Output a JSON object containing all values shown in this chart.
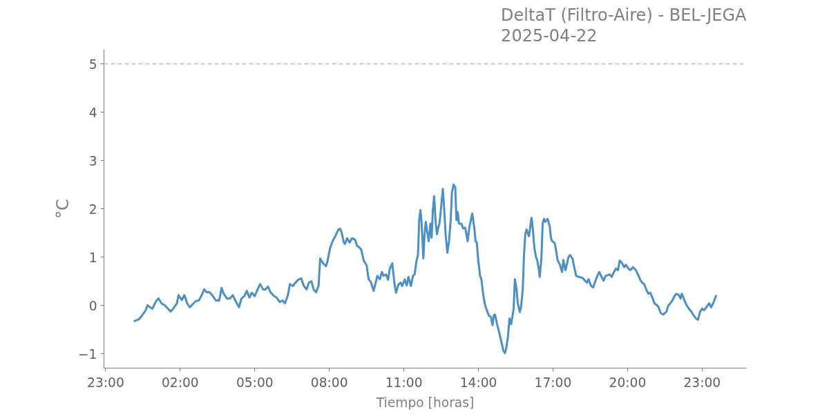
{
  "chart_data": {
    "type": "line",
    "title": "DeltaT (Filtro-Aire) - BEL-JEGA\n2025-04-22",
    "xlabel": "Tiempo [horas]",
    "ylabel": "°C",
    "xlim": [
      "2025-04-21T22:56",
      "2025-04-23T00:47"
    ],
    "ylim": [
      -1.3,
      5.3
    ],
    "xticks": [
      {
        "value": "2025-04-21T23:00",
        "label": "23:00"
      },
      {
        "value": "2025-04-22T02:00",
        "label": "02:00"
      },
      {
        "value": "2025-04-22T05:00",
        "label": "05:00"
      },
      {
        "value": "2025-04-22T08:00",
        "label": "08:00"
      },
      {
        "value": "2025-04-22T11:00",
        "label": "11:00"
      },
      {
        "value": "2025-04-22T14:00",
        "label": "14:00"
      },
      {
        "value": "2025-04-22T17:00",
        "label": "17:00"
      },
      {
        "value": "2025-04-22T20:00",
        "label": "20:00"
      },
      {
        "value": "2025-04-22T23:00",
        "label": "23:00"
      }
    ],
    "yticks": [
      {
        "value": -1,
        "label": "−1"
      },
      0,
      1,
      2,
      3,
      4,
      5
    ],
    "ref_lines": [
      {
        "axis": "y",
        "value": 5,
        "color": "#bbbbbb",
        "line_style": "dashed"
      }
    ],
    "series": [
      {
        "color": "#4a90c4",
        "x": [
          "2025-04-22T00:08",
          "2025-04-22T00:20",
          "2025-04-22T00:28",
          "2025-04-22T00:37",
          "2025-04-22T00:41",
          "2025-04-22T00:53",
          "2025-04-22T01:02",
          "2025-04-22T01:08",
          "2025-04-22T01:15",
          "2025-04-22T01:23",
          "2025-04-22T01:37",
          "2025-04-22T01:43",
          "2025-04-22T01:52",
          "2025-04-22T01:56",
          "2025-04-22T02:04",
          "2025-04-22T02:10",
          "2025-04-22T02:17",
          "2025-04-22T02:23",
          "2025-04-22T02:38",
          "2025-04-22T02:45",
          "2025-04-22T02:52",
          "2025-04-22T02:58",
          "2025-04-22T03:04",
          "2025-04-22T03:11",
          "2025-04-22T03:19",
          "2025-04-22T03:26",
          "2025-04-22T03:34",
          "2025-04-22T03:40",
          "2025-04-22T03:45",
          "2025-04-22T03:53",
          "2025-04-22T04:00",
          "2025-04-22T04:07",
          "2025-04-22T04:13",
          "2025-04-22T04:22",
          "2025-04-22T04:28",
          "2025-04-22T04:35",
          "2025-04-22T04:41",
          "2025-04-22T04:47",
          "2025-04-22T04:53",
          "2025-04-22T05:00",
          "2025-04-22T05:07",
          "2025-04-22T05:13",
          "2025-04-22T05:20",
          "2025-04-22T05:26",
          "2025-04-22T05:32",
          "2025-04-22T05:38",
          "2025-04-22T05:47",
          "2025-04-22T05:53",
          "2025-04-22T06:00",
          "2025-04-22T06:07",
          "2025-04-22T06:13",
          "2025-04-22T06:20",
          "2025-04-22T06:25",
          "2025-04-22T06:32",
          "2025-04-22T06:38",
          "2025-04-22T06:45",
          "2025-04-22T06:52",
          "2025-04-22T06:58",
          "2025-04-22T07:05",
          "2025-04-22T07:11",
          "2025-04-22T07:17",
          "2025-04-22T07:22",
          "2025-04-22T07:28",
          "2025-04-22T07:34",
          "2025-04-22T07:38",
          "2025-04-22T07:45",
          "2025-04-22T07:52",
          "2025-04-22T07:56",
          "2025-04-22T08:02",
          "2025-04-22T08:08",
          "2025-04-22T08:15",
          "2025-04-22T08:22",
          "2025-04-22T08:26",
          "2025-04-22T08:30",
          "2025-04-22T08:35",
          "2025-04-22T08:38",
          "2025-04-22T08:43",
          "2025-04-22T08:49",
          "2025-04-22T08:55",
          "2025-04-22T09:02",
          "2025-04-22T09:07",
          "2025-04-22T09:11",
          "2025-04-22T09:17",
          "2025-04-22T09:23",
          "2025-04-22T09:30",
          "2025-04-22T09:35",
          "2025-04-22T09:40",
          "2025-04-22T09:47",
          "2025-04-22T09:52",
          "2025-04-22T09:56",
          "2025-04-22T10:02",
          "2025-04-22T10:07",
          "2025-04-22T10:11",
          "2025-04-22T10:17",
          "2025-04-22T10:22",
          "2025-04-22T10:26",
          "2025-04-22T10:32",
          "2025-04-22T10:37",
          "2025-04-22T10:41",
          "2025-04-22T10:47",
          "2025-04-22T10:52",
          "2025-04-22T10:56",
          "2025-04-22T11:02",
          "2025-04-22T11:07",
          "2025-04-22T11:11",
          "2025-04-22T11:17",
          "2025-04-22T11:22",
          "2025-04-22T11:26",
          "2025-04-22T11:30",
          "2025-04-22T11:34",
          "2025-04-22T11:37",
          "2025-04-22T11:40",
          "2025-04-22T11:43",
          "2025-04-22T11:47",
          "2025-04-22T11:50",
          "2025-04-22T11:53",
          "2025-04-22T11:56",
          "2025-04-22T12:00",
          "2025-04-22T12:04",
          "2025-04-22T12:07",
          "2025-04-22T12:10",
          "2025-04-22T12:13",
          "2025-04-22T12:17",
          "2025-04-22T12:20",
          "2025-04-22T12:23",
          "2025-04-22T12:26",
          "2025-04-22T12:30",
          "2025-04-22T12:34",
          "2025-04-22T12:37",
          "2025-04-22T12:41",
          "2025-04-22T12:45",
          "2025-04-22T12:49",
          "2025-04-22T12:53",
          "2025-04-22T12:56",
          "2025-04-22T13:00",
          "2025-04-22T13:04",
          "2025-04-22T13:07",
          "2025-04-22T13:10",
          "2025-04-22T13:13",
          "2025-04-22T13:19",
          "2025-04-22T13:23",
          "2025-04-22T13:28",
          "2025-04-22T13:34",
          "2025-04-22T13:38",
          "2025-04-22T13:45",
          "2025-04-22T13:50",
          "2025-04-22T13:53",
          "2025-04-22T13:56",
          "2025-04-22T14:00",
          "2025-04-22T14:04",
          "2025-04-22T14:07",
          "2025-04-22T14:11",
          "2025-04-22T14:15",
          "2025-04-22T14:19",
          "2025-04-22T14:25",
          "2025-04-22T14:30",
          "2025-04-22T14:34",
          "2025-04-22T14:37",
          "2025-04-22T14:40",
          "2025-04-22T14:45",
          "2025-04-22T14:50",
          "2025-04-22T14:55",
          "2025-04-22T15:00",
          "2025-04-22T15:04",
          "2025-04-22T15:07",
          "2025-04-22T15:11",
          "2025-04-22T15:15",
          "2025-04-22T15:19",
          "2025-04-22T15:22",
          "2025-04-22T15:25",
          "2025-04-22T15:28",
          "2025-04-22T15:32",
          "2025-04-22T15:35",
          "2025-04-22T15:40",
          "2025-04-22T15:43",
          "2025-04-22T15:47",
          "2025-04-22T15:50",
          "2025-04-22T15:53",
          "2025-04-22T15:56",
          "2025-04-22T16:02",
          "2025-04-22T16:05",
          "2025-04-22T16:08",
          "2025-04-22T16:11",
          "2025-04-22T16:15",
          "2025-04-22T16:19",
          "2025-04-22T16:22",
          "2025-04-22T16:25",
          "2025-04-22T16:28",
          "2025-04-22T16:32",
          "2025-04-22T16:35",
          "2025-04-22T16:38",
          "2025-04-22T16:41",
          "2025-04-22T16:47",
          "2025-04-22T16:52",
          "2025-04-22T16:55",
          "2025-04-22T16:58",
          "2025-04-22T17:04",
          "2025-04-22T17:07",
          "2025-04-22T17:11",
          "2025-04-22T17:17",
          "2025-04-22T17:22",
          "2025-04-22T17:25",
          "2025-04-22T17:30",
          "2025-04-22T17:34",
          "2025-04-22T17:37",
          "2025-04-22T17:41",
          "2025-04-22T17:47",
          "2025-04-22T17:52",
          "2025-04-22T17:56",
          "2025-04-22T18:02",
          "2025-04-22T18:11",
          "2025-04-22T18:22",
          "2025-04-22T18:26",
          "2025-04-22T18:32",
          "2025-04-22T18:37",
          "2025-04-22T18:41",
          "2025-04-22T18:47",
          "2025-04-22T18:52",
          "2025-04-22T18:56",
          "2025-04-22T19:02",
          "2025-04-22T19:07",
          "2025-04-22T19:17",
          "2025-04-22T19:22",
          "2025-04-22T19:26",
          "2025-04-22T19:32",
          "2025-04-22T19:37",
          "2025-04-22T19:41",
          "2025-04-22T19:47",
          "2025-04-22T19:52",
          "2025-04-22T19:56",
          "2025-04-22T20:02",
          "2025-04-22T20:07",
          "2025-04-22T20:13",
          "2025-04-22T20:20",
          "2025-04-22T20:25",
          "2025-04-22T20:30",
          "2025-04-22T20:35",
          "2025-04-22T20:40",
          "2025-04-22T20:45",
          "2025-04-22T20:50",
          "2025-04-22T20:55",
          "2025-04-22T21:00",
          "2025-04-22T21:05",
          "2025-04-22T21:10",
          "2025-04-22T21:15",
          "2025-04-22T21:20",
          "2025-04-22T21:26",
          "2025-04-22T21:34",
          "2025-04-22T21:38",
          "2025-04-22T21:43",
          "2025-04-22T21:49",
          "2025-04-22T21:53",
          "2025-04-22T21:58",
          "2025-04-22T22:04",
          "2025-04-22T22:08",
          "2025-04-22T22:11",
          "2025-04-22T22:17",
          "2025-04-22T22:22",
          "2025-04-22T22:28",
          "2025-04-22T22:34",
          "2025-04-22T22:38",
          "2025-04-22T22:45",
          "2025-04-22T22:50",
          "2025-04-22T22:55",
          "2025-04-22T23:00",
          "2025-04-22T23:05",
          "2025-04-22T23:10",
          "2025-04-22T23:17",
          "2025-04-22T23:22",
          "2025-04-22T23:28",
          "2025-04-22T23:34"
        ],
        "values": [
          -0.33,
          -0.29,
          -0.21,
          -0.1,
          0.0,
          -0.07,
          0.09,
          0.14,
          0.04,
          0.0,
          -0.13,
          -0.07,
          0.04,
          0.21,
          0.11,
          0.21,
          0.04,
          -0.04,
          0.09,
          0.1,
          0.21,
          0.33,
          0.27,
          0.27,
          0.19,
          0.1,
          0.1,
          0.36,
          0.24,
          0.14,
          0.14,
          0.21,
          0.1,
          -0.04,
          0.14,
          0.19,
          0.3,
          0.16,
          0.26,
          0.19,
          0.33,
          0.44,
          0.33,
          0.33,
          0.39,
          0.27,
          0.19,
          0.16,
          0.07,
          0.1,
          0.04,
          0.21,
          0.44,
          0.4,
          0.47,
          0.53,
          0.56,
          0.41,
          0.33,
          0.47,
          0.5,
          0.33,
          0.27,
          0.4,
          0.97,
          0.87,
          0.81,
          0.93,
          1.19,
          1.33,
          1.44,
          1.57,
          1.59,
          1.5,
          1.3,
          1.27,
          1.39,
          1.3,
          1.39,
          1.36,
          1.23,
          1.21,
          1.16,
          0.93,
          0.83,
          0.54,
          0.49,
          0.3,
          0.47,
          0.61,
          0.54,
          0.69,
          0.61,
          0.64,
          0.53,
          0.76,
          0.87,
          0.47,
          0.26,
          0.43,
          0.47,
          0.4,
          0.54,
          0.41,
          0.59,
          0.4,
          0.61,
          0.64,
          0.9,
          1.04,
          1.76,
          1.97,
          1.69,
          0.97,
          1.47,
          1.73,
          1.54,
          1.33,
          1.69,
          1.4,
          1.97,
          2.26,
          1.69,
          1.47,
          1.61,
          1.69,
          2.04,
          2.41,
          2.04,
          1.44,
          1.09,
          1.33,
          1.76,
          2.33,
          2.5,
          2.44,
          1.76,
          1.93,
          1.69,
          1.69,
          1.59,
          1.61,
          1.33,
          1.61,
          1.9,
          1.61,
          1.33,
          1.3,
          0.9,
          0.61,
          0.54,
          0.26,
          0.04,
          -0.07,
          -0.21,
          -0.24,
          -0.41,
          -0.21,
          -0.19,
          -0.39,
          -0.56,
          -0.74,
          -0.93,
          -0.99,
          -0.89,
          -0.67,
          -0.27,
          -0.39,
          -0.24,
          -0.07,
          0.54,
          0.33,
          0.04,
          -0.14,
          -0.03,
          0.33,
          1.04,
          1.47,
          1.57,
          1.43,
          1.61,
          1.81,
          1.61,
          1.19,
          1.0,
          0.93,
          0.79,
          0.59,
          0.97,
          1.69,
          1.79,
          1.73,
          1.79,
          1.64,
          1.4,
          1.33,
          1.29,
          1.16,
          0.94,
          0.83,
          0.69,
          0.94,
          0.73,
          0.87,
          0.99,
          1.04,
          0.97,
          0.76,
          0.61,
          0.59,
          0.57,
          0.47,
          0.54,
          0.4,
          0.37,
          0.47,
          0.61,
          0.69,
          0.61,
          0.51,
          0.61,
          0.64,
          0.59,
          0.67,
          0.76,
          0.73,
          0.93,
          0.87,
          0.79,
          0.84,
          0.76,
          0.73,
          0.79,
          0.73,
          0.64,
          0.54,
          0.47,
          0.44,
          0.33,
          0.24,
          0.26,
          0.16,
          0.04,
          0.01,
          -0.04,
          -0.16,
          -0.19,
          -0.13,
          -0.01,
          0.04,
          0.11,
          0.19,
          0.24,
          0.21,
          0.14,
          0.24,
          0.11,
          0.01,
          -0.07,
          -0.13,
          -0.19,
          -0.27,
          -0.3,
          -0.13,
          -0.07,
          -0.1,
          -0.04,
          0.04,
          -0.04,
          0.07,
          0.21
        ]
      }
    ]
  }
}
